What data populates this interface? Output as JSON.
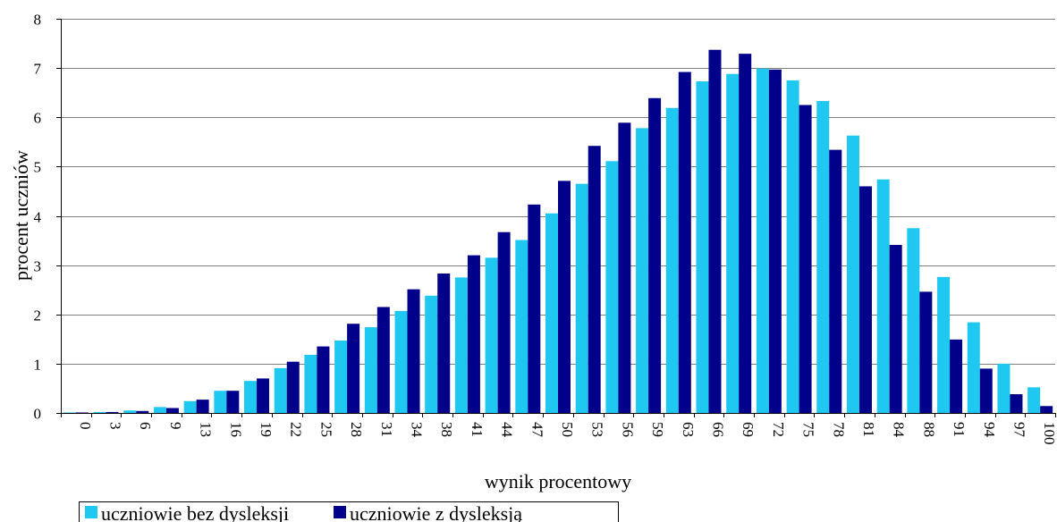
{
  "chart_data": {
    "type": "bar",
    "title": "",
    "xlabel": "wynik procentowy",
    "ylabel": "procent uczniów",
    "ylim": [
      0,
      8
    ],
    "yticks": [
      0,
      1,
      2,
      3,
      4,
      5,
      6,
      7,
      8
    ],
    "grid": true,
    "legend_position": "bottom-left",
    "categories": [
      "0",
      "3",
      "6",
      "9",
      "13",
      "16",
      "19",
      "22",
      "25",
      "28",
      "31",
      "34",
      "38",
      "41",
      "44",
      "47",
      "50",
      "53",
      "56",
      "59",
      "63",
      "66",
      "69",
      "72",
      "75",
      "78",
      "81",
      "84",
      "88",
      "91",
      "94",
      "97",
      "100"
    ],
    "series": [
      {
        "name": "uczniowie bez dysleksji",
        "color": "#1ec8f0",
        "values": [
          0.01,
          0.02,
          0.05,
          0.12,
          0.24,
          0.45,
          0.65,
          0.91,
          1.18,
          1.47,
          1.74,
          2.07,
          2.38,
          2.75,
          3.15,
          3.51,
          4.05,
          4.65,
          5.11,
          5.78,
          6.19,
          6.73,
          6.88,
          6.99,
          6.75,
          6.33,
          5.63,
          4.74,
          3.75,
          2.76,
          1.84,
          1.0,
          0.52
        ]
      },
      {
        "name": "uczniowie z dysleksją",
        "color": "#00008a",
        "values": [
          0.01,
          0.02,
          0.04,
          0.1,
          0.27,
          0.45,
          0.7,
          1.04,
          1.35,
          1.81,
          2.15,
          2.51,
          2.83,
          3.2,
          3.67,
          4.23,
          4.71,
          5.42,
          5.89,
          6.39,
          6.92,
          7.37,
          7.29,
          6.97,
          6.25,
          5.34,
          4.6,
          3.41,
          2.46,
          1.49,
          0.9,
          0.38,
          0.14
        ]
      }
    ]
  }
}
